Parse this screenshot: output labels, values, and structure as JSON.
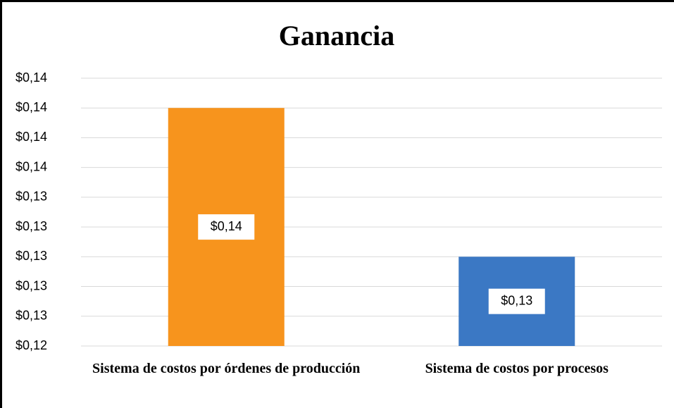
{
  "chart_data": {
    "type": "bar",
    "title": "Ganancia",
    "categories": [
      "Sistema de costos por órdenes de producción",
      "Sistema de costos por procesos"
    ],
    "values": [
      0.1395,
      0.1295
    ],
    "value_labels": [
      "$0,14",
      "$0,13"
    ],
    "colors": [
      "#f7941d",
      "#3b78c4"
    ],
    "ylim": [
      0.1235,
      0.1415
    ],
    "yticks": [
      {
        "value": 0.1235,
        "label": "$0,12"
      },
      {
        "value": 0.1255,
        "label": "$0,13"
      },
      {
        "value": 0.1275,
        "label": "$0,13"
      },
      {
        "value": 0.1295,
        "label": "$0,13"
      },
      {
        "value": 0.1315,
        "label": "$0,13"
      },
      {
        "value": 0.1335,
        "label": "$0,13"
      },
      {
        "value": 0.1355,
        "label": "$0,14"
      },
      {
        "value": 0.1375,
        "label": "$0,14"
      },
      {
        "value": 0.1395,
        "label": "$0,14"
      },
      {
        "value": 0.1415,
        "label": "$0,14"
      }
    ],
    "grid": true
  }
}
